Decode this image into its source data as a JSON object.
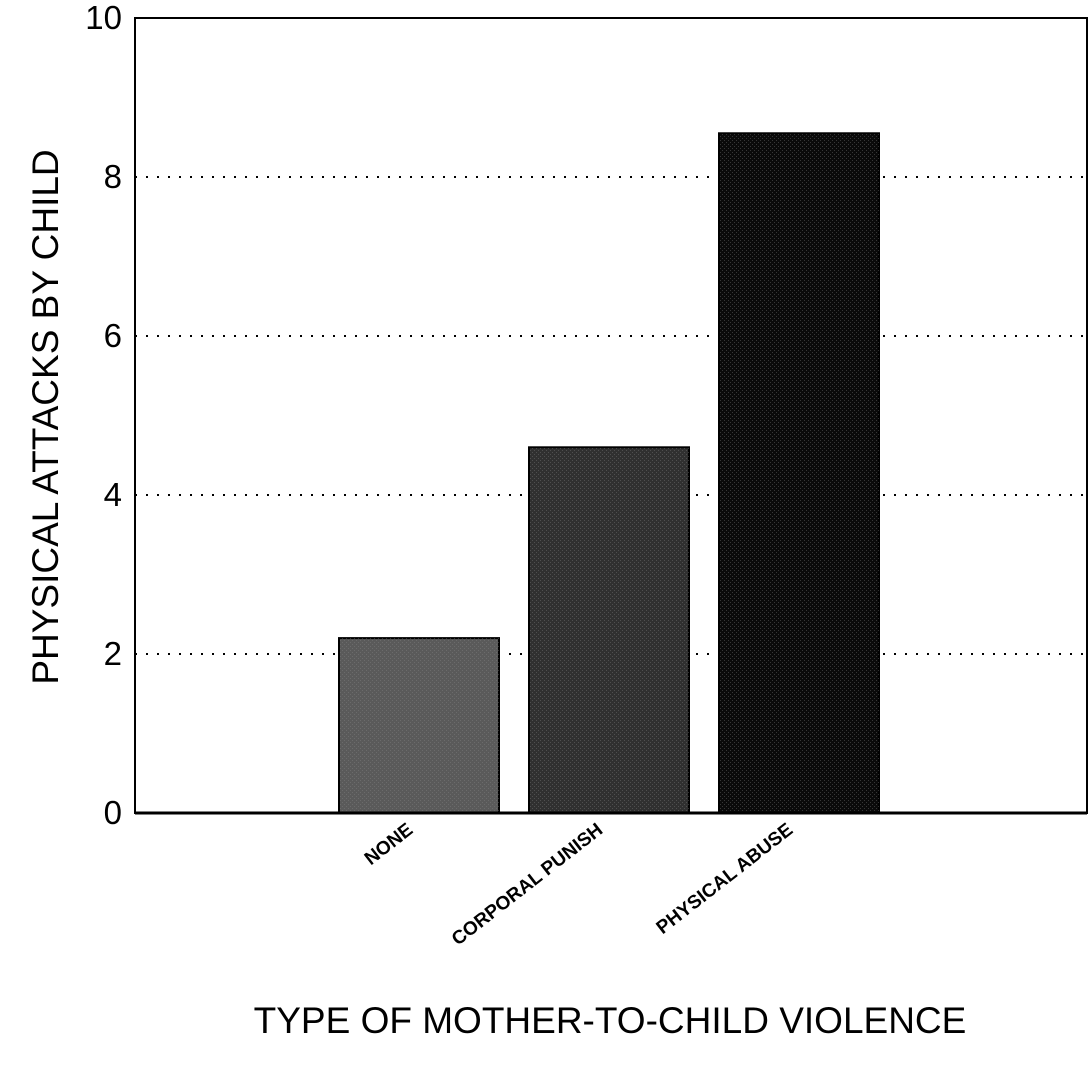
{
  "chart_data": {
    "type": "bar",
    "categories": [
      "NONE",
      "CORPORAL PUNISH",
      "PHYSICAL ABUSE"
    ],
    "values": [
      2.2,
      4.6,
      8.55
    ],
    "xlabel": "TYPE OF MOTHER-TO-CHILD VIOLENCE",
    "ylabel": "PHYSICAL ATTACKS BY CHILD",
    "ylim": [
      0,
      10
    ],
    "yticks": [
      0,
      2,
      4,
      6,
      8,
      10
    ],
    "grid": "dotted horizontal at 2, 4, 6, 8",
    "bar_colors": [
      "#5a5a5a",
      "#303030",
      "#0a0a0a"
    ]
  }
}
